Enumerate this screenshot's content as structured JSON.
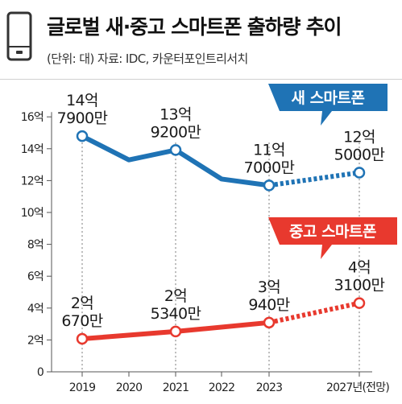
{
  "header": {
    "title": "글로벌 새·중고 스마트폰 출하량 추이",
    "source": "(단위: 대) 자료: IDC, 카운터포인트리서치",
    "icon": "smartphone-icon"
  },
  "colors": {
    "new": "#1f73b5",
    "used": "#e8392e",
    "axis": "#555555"
  },
  "chart_data": {
    "type": "line",
    "title": "글로벌 새·중고 스마트폰 출하량 추이",
    "unit": "(단위: 대)",
    "categories": [
      "2019",
      "2020",
      "2021",
      "2022",
      "2023",
      "2027년(전망)"
    ],
    "x_positions": [
      2019,
      2020,
      2021,
      2022,
      2023,
      2027
    ],
    "ylim": [
      0,
      16
    ],
    "y_ticks": [
      {
        "value": 0,
        "label": "0"
      },
      {
        "value": 2,
        "label": "2억"
      },
      {
        "value": 4,
        "label": "4억"
      },
      {
        "value": 6,
        "label": "6억"
      },
      {
        "value": 8,
        "label": "8억"
      },
      {
        "value": 10,
        "label": "10억"
      },
      {
        "value": 12,
        "label": "12억"
      },
      {
        "value": 14,
        "label": "14억"
      },
      {
        "value": 16,
        "label": "16억"
      }
    ],
    "series": [
      {
        "name": "새 스마트폰",
        "color": "#1f73b5",
        "points": [
          {
            "x": 2019,
            "y": 14.79
          },
          {
            "x": 2020,
            "y": 13.3
          },
          {
            "x": 2021,
            "y": 13.92
          },
          {
            "x": 2022,
            "y": 12.1
          },
          {
            "x": 2023,
            "y": 11.7
          },
          {
            "x": 2027,
            "y": 12.5
          }
        ],
        "forecast_from": 2023,
        "labels": [
          {
            "x": 2019,
            "lines": [
              "14억",
              "7900만"
            ]
          },
          {
            "x": 2021,
            "lines": [
              "13억",
              "9200만"
            ]
          },
          {
            "x": 2023,
            "lines": [
              "11억",
              "7000만"
            ]
          },
          {
            "x": 2027,
            "lines": [
              "12억",
              "5000만"
            ]
          }
        ]
      },
      {
        "name": "중고 스마트폰",
        "color": "#e8392e",
        "points": [
          {
            "x": 2019,
            "y": 2.07
          },
          {
            "x": 2021,
            "y": 2.53
          },
          {
            "x": 2023,
            "y": 3.09
          },
          {
            "x": 2027,
            "y": 4.31
          }
        ],
        "forecast_from": 2023,
        "labels": [
          {
            "x": 2019,
            "lines": [
              "2억",
              "670만"
            ]
          },
          {
            "x": 2021,
            "lines": [
              "2억",
              "5340만"
            ]
          },
          {
            "x": 2023,
            "lines": [
              "3억",
              "940만"
            ]
          },
          {
            "x": 2027,
            "lines": [
              "4억",
              "3100만"
            ]
          }
        ]
      }
    ]
  }
}
